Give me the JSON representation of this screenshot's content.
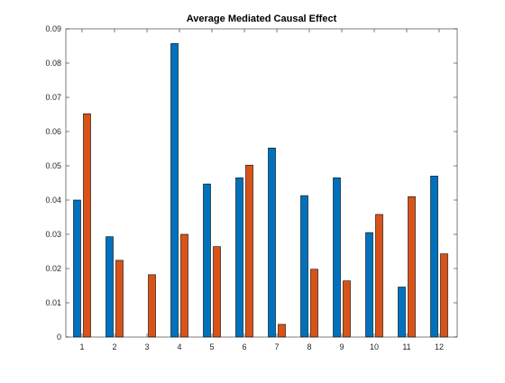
{
  "chart_data": {
    "type": "bar",
    "title": "Average Mediated Causal Effect",
    "xlabel": "",
    "ylabel": "",
    "categories": [
      "1",
      "2",
      "3",
      "4",
      "5",
      "6",
      "7",
      "8",
      "9",
      "10",
      "11",
      "12"
    ],
    "series": [
      {
        "color": "#0072BD",
        "values": [
          0.04,
          0.0293,
          0.0,
          0.0857,
          0.0447,
          0.0465,
          0.0552,
          0.0413,
          0.0465,
          0.0305,
          0.0146,
          0.047
        ]
      },
      {
        "color": "#D95319",
        "values": [
          0.0652,
          0.0224,
          0.0182,
          0.03,
          0.0264,
          0.0502,
          0.0037,
          0.0198,
          0.0164,
          0.0358,
          0.041,
          0.0243
        ]
      }
    ],
    "ylim": [
      0,
      0.09
    ],
    "yticks": [
      "0",
      "0.01",
      "0.02",
      "0.03",
      "0.04",
      "0.05",
      "0.06",
      "0.07",
      "0.08",
      "0.09"
    ],
    "xticks": [
      "1",
      "2",
      "3",
      "4",
      "5",
      "6",
      "7",
      "8",
      "9",
      "10",
      "11",
      "12"
    ],
    "grid": false,
    "legend": "none"
  }
}
